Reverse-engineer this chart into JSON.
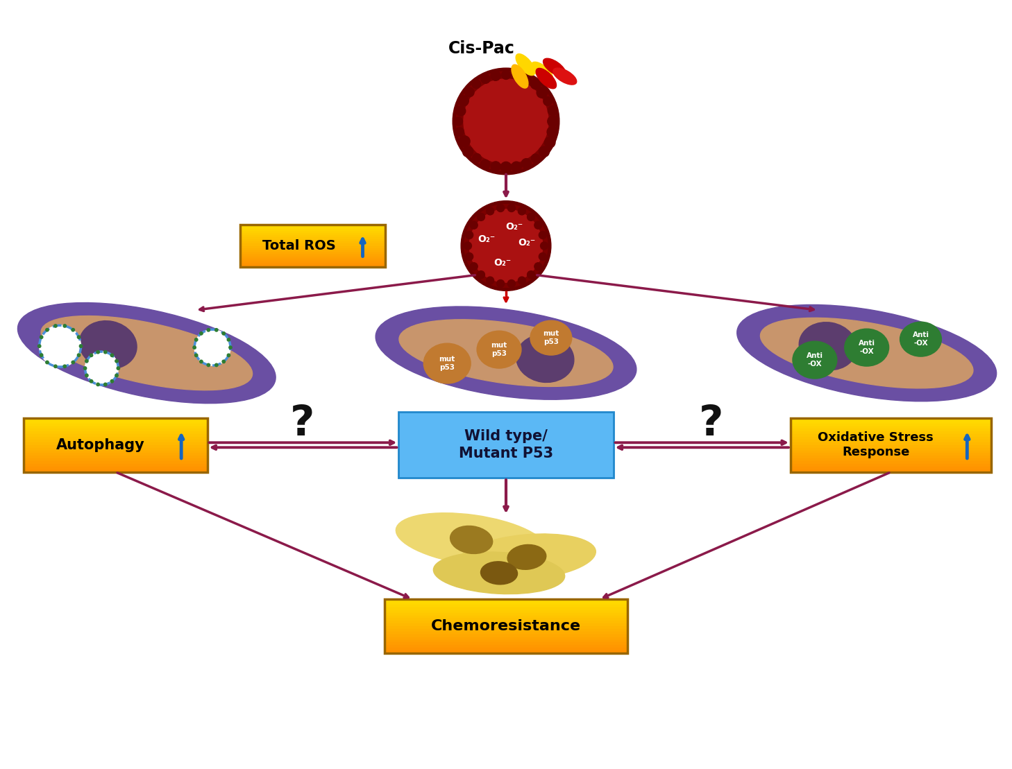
{
  "bg_color": "#ffffff",
  "arrow_color": "#8B1A4A",
  "dashed_arrow_color": "#CC0000",
  "box_yellow_light": "#FFD700",
  "box_yellow_dark": "#FFA500",
  "box_blue_color": "#5BB8F5",
  "cell_outer_color": "#6A4FA3",
  "cell_inner_color": "#C8956C",
  "nucleus_color": "#5C3D6E",
  "autophagosome_blue": "#4A90D9",
  "autophagosome_dot": "#2E7D32",
  "mut_p53_color": "#C17A30",
  "anti_ox_color": "#2E7D32",
  "question_color": "#111111",
  "cancer_cell_dark": "#7B0000",
  "cancer_cell_mid": "#AA1111",
  "cancer_cell_bump": "#6B0000",
  "chemo_cell_color": "#E8D580",
  "chemo_nuc_color": "#9B7A20",
  "blue_arrow_color": "#1565C0",
  "total_ros_label": "Total ROS",
  "autophagy_label": "Autophagy",
  "p53_label": "Wild type/\nMutant P53",
  "oxidative_label": "Oxidative Stress\nResponse",
  "chemoresistance_label": "Chemoresistance",
  "cispac_label": "Cis-Pac",
  "figsize": [
    14.58,
    11.09
  ],
  "dpi": 100
}
